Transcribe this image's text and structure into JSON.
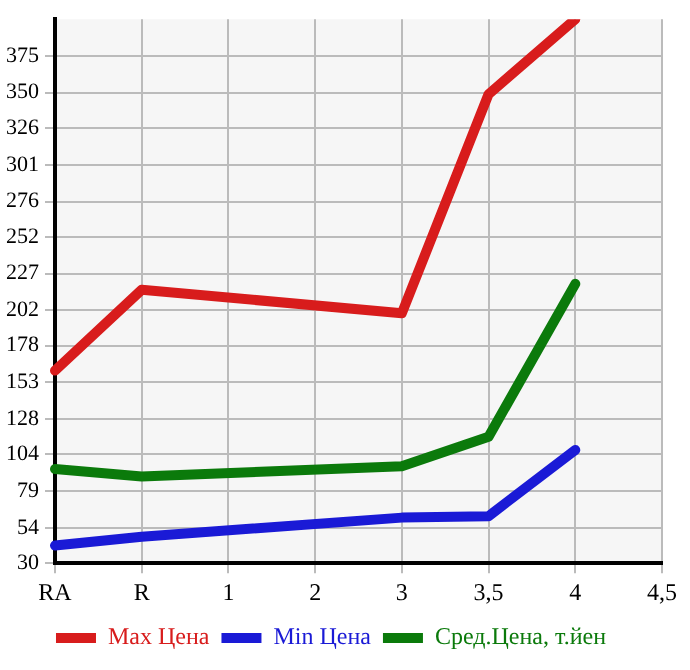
{
  "chart_data": {
    "type": "line",
    "categories": [
      "RA",
      "R",
      "1",
      "2",
      "3",
      "3,5",
      "4",
      "4,5"
    ],
    "series": [
      {
        "name": "Max Цена",
        "color": "#d81c1c",
        "values": [
          161,
          216,
          null,
          null,
          200,
          349,
          400,
          null
        ]
      },
      {
        "name": "Min Цена",
        "color": "#1a1ad6",
        "values": [
          42,
          48,
          null,
          null,
          61,
          62,
          107,
          null
        ]
      },
      {
        "name": "Сред.Цена, т.йен",
        "color": "#0b7a0b",
        "values": [
          94,
          89,
          null,
          null,
          96,
          116,
          220,
          null
        ]
      }
    ],
    "ylim": [
      30,
      400
    ],
    "yticks": [
      30,
      54,
      79,
      104,
      128,
      153,
      178,
      202,
      227,
      252,
      276,
      301,
      326,
      350,
      375
    ],
    "grid": true,
    "legend": "bottom",
    "marker": "none",
    "line_style": "solid"
  }
}
